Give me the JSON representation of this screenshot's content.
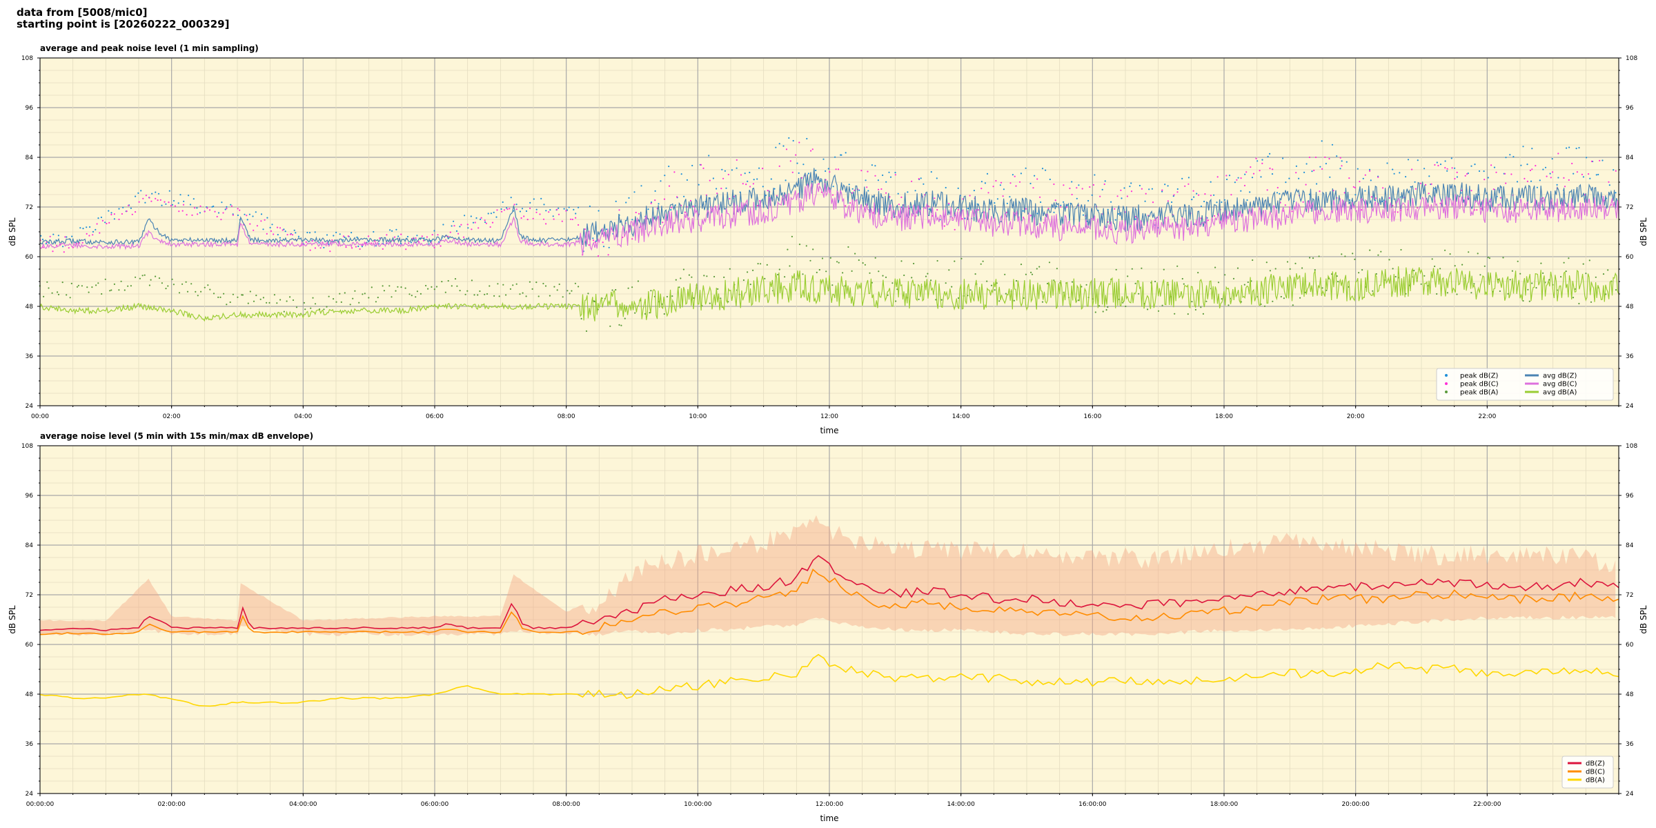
{
  "header": {
    "line1": "data from [5008/mic0]",
    "line2": "starting point is [20260222_000329]"
  },
  "colors": {
    "plot_bg": "#fdf6d8",
    "peak_z": "#1f8fd8",
    "peak_c": "#ff2fd8",
    "peak_a": "#5a9a3a",
    "avg_z": "#4a83b3",
    "avg_c": "#dd70dd",
    "avg_a": "#9acd32",
    "z": "#dc143c",
    "c": "#ff8c00",
    "a": "#ffd700",
    "envelope": "#f4a582"
  },
  "chart_data": [
    {
      "type": "line",
      "title": "average and peak noise level (1 min sampling)",
      "xlabel": "time",
      "ylabel": "dB SPL",
      "ylim": [
        24,
        108
      ],
      "yticks": [
        24,
        36,
        48,
        60,
        72,
        84,
        96,
        108
      ],
      "xlim_hours": [
        0,
        24
      ],
      "xticks": [
        "00:00",
        "02:00",
        "04:00",
        "06:00",
        "08:00",
        "10:00",
        "12:00",
        "14:00",
        "16:00",
        "18:00",
        "20:00",
        "22:00"
      ],
      "grid": true,
      "legend_placement": "bottom-right",
      "legend": [
        {
          "label": "peak dB(Z)",
          "kind": "dot",
          "color_key": "peak_z"
        },
        {
          "label": "peak dB(C)",
          "kind": "dot",
          "color_key": "peak_c"
        },
        {
          "label": "peak dB(A)",
          "kind": "dot",
          "color_key": "peak_a"
        },
        {
          "label": "avg dB(Z)",
          "kind": "line",
          "color_key": "avg_z"
        },
        {
          "label": "avg dB(C)",
          "kind": "line",
          "color_key": "avg_c"
        },
        {
          "label": "avg dB(A)",
          "kind": "line",
          "color_key": "avg_a"
        }
      ],
      "series": [
        {
          "name": "avg dB(Z)",
          "style": "line",
          "color_key": "avg_z",
          "x": [
            0,
            0.5,
            1,
            1.5,
            1.65,
            1.8,
            2,
            2.5,
            3,
            3.05,
            3.2,
            3.5,
            4,
            4.5,
            5,
            5.5,
            6,
            6.2,
            6.5,
            7,
            7.2,
            7.3,
            7.5,
            8,
            8.5,
            9,
            9.5,
            10,
            10.5,
            11,
            11.5,
            11.8,
            12,
            12.3,
            12.5,
            13,
            13.5,
            14,
            14.5,
            15,
            15.5,
            16,
            16.5,
            17,
            17.5,
            18,
            18.5,
            19,
            19.5,
            20,
            20.5,
            21,
            21.5,
            22,
            22.5,
            23,
            23.5,
            24
          ],
          "y": [
            63.5,
            63.8,
            63.5,
            63.5,
            69,
            66,
            64,
            64,
            64,
            70,
            64,
            64,
            64,
            64,
            64,
            64,
            64,
            65,
            64,
            64,
            72,
            65,
            64,
            64,
            66,
            68,
            71,
            72,
            73,
            74,
            76,
            79,
            77,
            75,
            74,
            72,
            73,
            72,
            71,
            71,
            70,
            70,
            69,
            70,
            70,
            71,
            72,
            73,
            74,
            74,
            74,
            75,
            75,
            74,
            74,
            74,
            75,
            74
          ]
        },
        {
          "name": "avg dB(C)",
          "style": "line",
          "color_key": "avg_c",
          "x": [
            0,
            0.5,
            1,
            1.5,
            1.65,
            1.8,
            2,
            2.5,
            3,
            3.05,
            3.2,
            3.5,
            4,
            4.5,
            5,
            5.5,
            6,
            6.2,
            6.5,
            7,
            7.2,
            7.3,
            7.5,
            8,
            8.5,
            9,
            9.5,
            10,
            10.5,
            11,
            11.5,
            11.8,
            12,
            12.3,
            12.5,
            13,
            13.5,
            14,
            14.5,
            15,
            15.5,
            16,
            16.5,
            17,
            17.5,
            18,
            18.5,
            19,
            19.5,
            20,
            20.5,
            21,
            21.5,
            22,
            22.5,
            23,
            23.5,
            24
          ],
          "y": [
            62.5,
            62.8,
            62.5,
            62.5,
            66,
            64,
            63,
            63,
            63,
            68,
            63,
            63,
            63,
            63,
            63,
            63,
            63,
            64,
            63,
            63,
            69,
            64,
            63,
            63,
            64,
            66,
            68,
            69,
            70,
            71,
            73,
            76,
            74,
            72,
            71,
            69,
            70,
            69,
            68,
            68,
            67,
            67,
            66,
            67,
            67,
            68,
            69,
            70,
            71,
            71,
            71,
            72,
            72,
            71,
            71,
            71,
            72,
            71
          ]
        },
        {
          "name": "avg dB(A)",
          "style": "line",
          "color_key": "avg_a",
          "x": [
            0,
            0.5,
            1,
            1.5,
            2,
            2.5,
            3,
            3.5,
            4,
            4.5,
            5,
            5.5,
            6,
            6.5,
            7,
            7.5,
            8,
            8.5,
            9,
            9.5,
            10,
            10.5,
            11,
            11.5,
            12,
            12.5,
            13,
            13.5,
            14,
            14.5,
            15,
            15.5,
            16,
            16.5,
            17,
            17.5,
            18,
            18.5,
            19,
            19.5,
            20,
            20.5,
            21,
            21.5,
            22,
            22.5,
            23,
            23.5,
            24
          ],
          "y": [
            48,
            47,
            47,
            48,
            47,
            45,
            46,
            46,
            46,
            47,
            47,
            47,
            48,
            48,
            48,
            48,
            48,
            48,
            48,
            49,
            50,
            51,
            52,
            53,
            52,
            51,
            51,
            51,
            51,
            51,
            51,
            51,
            51,
            51,
            51,
            51,
            51,
            52,
            52,
            53,
            53,
            54,
            54,
            54,
            53,
            53,
            53,
            53,
            52
          ]
        },
        {
          "name": "peak dB(Z)",
          "style": "scatter",
          "color_key": "peak_z",
          "x": [
            0.5,
            1.6,
            3,
            4,
            6,
            7.2,
            8.5,
            9,
            9.5,
            10,
            10.5,
            11,
            11.5,
            12,
            12.5,
            13,
            14,
            15,
            16,
            17,
            18,
            18.5,
            19,
            19.5,
            20,
            21,
            22,
            23,
            23.5
          ],
          "y": [
            66,
            77,
            73,
            66,
            67,
            75,
            72,
            78,
            82,
            84,
            86,
            85,
            90,
            88,
            83,
            82,
            80,
            82,
            80,
            78,
            82,
            86,
            84,
            88,
            85,
            84,
            85,
            88,
            86
          ]
        },
        {
          "name": "peak dB(C)",
          "style": "scatter",
          "color_key": "peak_c",
          "x": [
            0.5,
            1.6,
            3,
            4,
            6,
            7.2,
            8.5,
            9,
            9.5,
            10,
            10.5,
            11,
            11.5,
            12,
            12.5,
            13,
            14,
            15,
            16,
            17,
            18,
            18.5,
            19,
            19.5,
            20,
            21,
            22,
            23,
            23.5
          ],
          "y": [
            65,
            75,
            72,
            65,
            66,
            73,
            70,
            76,
            80,
            82,
            84,
            83,
            88,
            86,
            81,
            80,
            78,
            80,
            78,
            76,
            80,
            84,
            82,
            86,
            83,
            82,
            83,
            86,
            84
          ]
        },
        {
          "name": "peak dB(A)",
          "style": "scatter",
          "color_key": "peak_a",
          "x": [
            0.5,
            1.6,
            3,
            4,
            6,
            7.2,
            8.5,
            9,
            9.5,
            10,
            10.5,
            11,
            11.5,
            12,
            12.5,
            13,
            14,
            15,
            16,
            17,
            18,
            18.5,
            19,
            19.5,
            20,
            21,
            22,
            23,
            23.5
          ],
          "y": [
            54,
            56,
            52,
            50,
            55,
            54,
            54,
            55,
            56,
            58,
            60,
            62,
            66,
            64,
            62,
            60,
            60,
            60,
            58,
            58,
            58,
            60,
            60,
            62,
            62,
            62,
            62,
            60,
            60
          ]
        }
      ]
    },
    {
      "type": "line",
      "title": "average noise level (5 min with 15s min/max dB envelope)",
      "xlabel": "time",
      "ylabel": "dB SPL",
      "ylim": [
        24,
        108
      ],
      "yticks": [
        24,
        36,
        48,
        60,
        72,
        84,
        96,
        108
      ],
      "xlim_hours": [
        0,
        24
      ],
      "xticks": [
        "00:00:00",
        "02:00:00",
        "04:00:00",
        "06:00:00",
        "08:00:00",
        "10:00:00",
        "12:00:00",
        "14:00:00",
        "16:00:00",
        "18:00:00",
        "20:00:00",
        "22:00:00"
      ],
      "grid": true,
      "legend_placement": "bottom-right",
      "legend": [
        {
          "label": "dB(Z)",
          "kind": "line",
          "color_key": "z"
        },
        {
          "label": "dB(C)",
          "kind": "line",
          "color_key": "c"
        },
        {
          "label": "dB(A)",
          "kind": "line",
          "color_key": "a"
        }
      ],
      "envelope": {
        "color_key": "envelope",
        "x": [
          0,
          1,
          1.65,
          2,
          3,
          3.05,
          4,
          6,
          7,
          7.2,
          8,
          8.5,
          9,
          9.5,
          10,
          10.5,
          11,
          11.5,
          11.8,
          12,
          12.5,
          13,
          14,
          15,
          16,
          17,
          18,
          19,
          20,
          21,
          22,
          23,
          24
        ],
        "low": [
          62,
          62,
          63,
          62,
          62,
          64,
          62,
          62,
          62,
          63,
          62,
          62,
          63,
          62,
          63,
          63,
          64,
          64,
          66,
          65,
          64,
          63,
          63,
          62,
          62,
          62,
          63,
          63,
          64,
          65,
          66,
          66,
          66
        ],
        "high": [
          66,
          66,
          76,
          67,
          66,
          75,
          66,
          67,
          67,
          77,
          68,
          72,
          80,
          83,
          84,
          86,
          87,
          90,
          92,
          90,
          87,
          86,
          85,
          85,
          84,
          83,
          86,
          87,
          86,
          84,
          84,
          84,
          82
        ]
      },
      "series": [
        {
          "name": "dB(Z)",
          "style": "line",
          "color_key": "z",
          "x": [
            0,
            0.5,
            1,
            1.5,
            1.65,
            1.8,
            2,
            2.5,
            3,
            3.05,
            3.2,
            3.5,
            4,
            4.5,
            5,
            5.5,
            6,
            6.2,
            6.5,
            7,
            7.2,
            7.3,
            7.5,
            8,
            8.5,
            9,
            9.5,
            10,
            10.5,
            11,
            11.5,
            11.8,
            12,
            12.3,
            12.5,
            13,
            13.5,
            14,
            14.5,
            15,
            15.5,
            16,
            16.5,
            17,
            17.5,
            18,
            18.5,
            19,
            19.5,
            20,
            20.5,
            21,
            21.5,
            22,
            22.5,
            23,
            23.5,
            24
          ],
          "y": [
            63.5,
            63.8,
            63.5,
            64,
            67,
            66,
            64,
            64,
            64,
            70,
            64,
            64,
            64,
            64,
            64,
            64,
            64,
            65,
            64,
            64,
            71,
            65,
            64,
            64,
            66,
            68,
            71,
            72,
            73,
            74,
            76,
            81,
            79,
            76,
            74,
            72,
            73,
            72,
            71,
            71,
            70,
            70,
            69,
            70,
            70,
            71,
            72,
            73,
            74,
            74,
            74,
            75,
            75,
            74,
            74,
            74,
            75,
            74
          ]
        },
        {
          "name": "dB(C)",
          "style": "line",
          "color_key": "c",
          "x": [
            0,
            0.5,
            1,
            1.5,
            1.65,
            1.8,
            2,
            2.5,
            3,
            3.05,
            3.2,
            3.5,
            4,
            4.5,
            5,
            5.5,
            6,
            6.2,
            6.5,
            7,
            7.2,
            7.3,
            7.5,
            8,
            8.5,
            9,
            9.5,
            10,
            10.5,
            11,
            11.5,
            11.8,
            12,
            12.3,
            12.5,
            13,
            13.5,
            14,
            14.5,
            15,
            15.5,
            16,
            16.5,
            17,
            17.5,
            18,
            18.5,
            19,
            19.5,
            20,
            20.5,
            21,
            21.5,
            22,
            22.5,
            23,
            23.5,
            24
          ],
          "y": [
            62.5,
            62.8,
            62.5,
            63,
            65,
            64,
            63,
            63,
            63,
            68,
            63,
            63,
            63,
            63,
            63,
            63,
            63,
            64,
            63,
            63,
            69,
            64,
            63,
            63,
            64,
            66,
            68,
            69,
            70,
            71,
            73,
            78,
            76,
            73,
            71,
            69,
            70,
            69,
            68,
            68,
            67,
            67,
            66,
            67,
            67,
            68,
            69,
            70,
            71,
            71,
            71,
            72,
            72,
            71,
            71,
            71,
            72,
            71
          ]
        },
        {
          "name": "dB(A)",
          "style": "line",
          "color_key": "a",
          "x": [
            0,
            0.5,
            1,
            1.5,
            2,
            2.5,
            3,
            3.5,
            4,
            4.5,
            5,
            5.5,
            6,
            6.5,
            7,
            7.5,
            8,
            8.5,
            9,
            9.5,
            10,
            10.5,
            11,
            11.5,
            11.8,
            12,
            12.5,
            13,
            13.5,
            14,
            14.5,
            15,
            15.5,
            16,
            16.5,
            17,
            17.5,
            18,
            18.5,
            19,
            19.5,
            20,
            20.5,
            21,
            21.5,
            22,
            22.5,
            23,
            23.5,
            24
          ],
          "y": [
            48,
            47,
            47,
            48,
            47,
            45,
            46,
            46,
            46,
            47,
            47,
            47,
            48,
            50,
            48,
            48,
            48,
            48,
            48,
            49,
            50,
            51,
            52,
            53,
            58,
            55,
            53,
            52,
            52,
            52,
            52,
            51,
            51,
            51,
            51,
            51,
            51,
            52,
            52,
            53,
            53,
            54,
            55,
            54,
            54,
            53,
            53,
            53,
            54,
            52
          ]
        }
      ]
    }
  ]
}
